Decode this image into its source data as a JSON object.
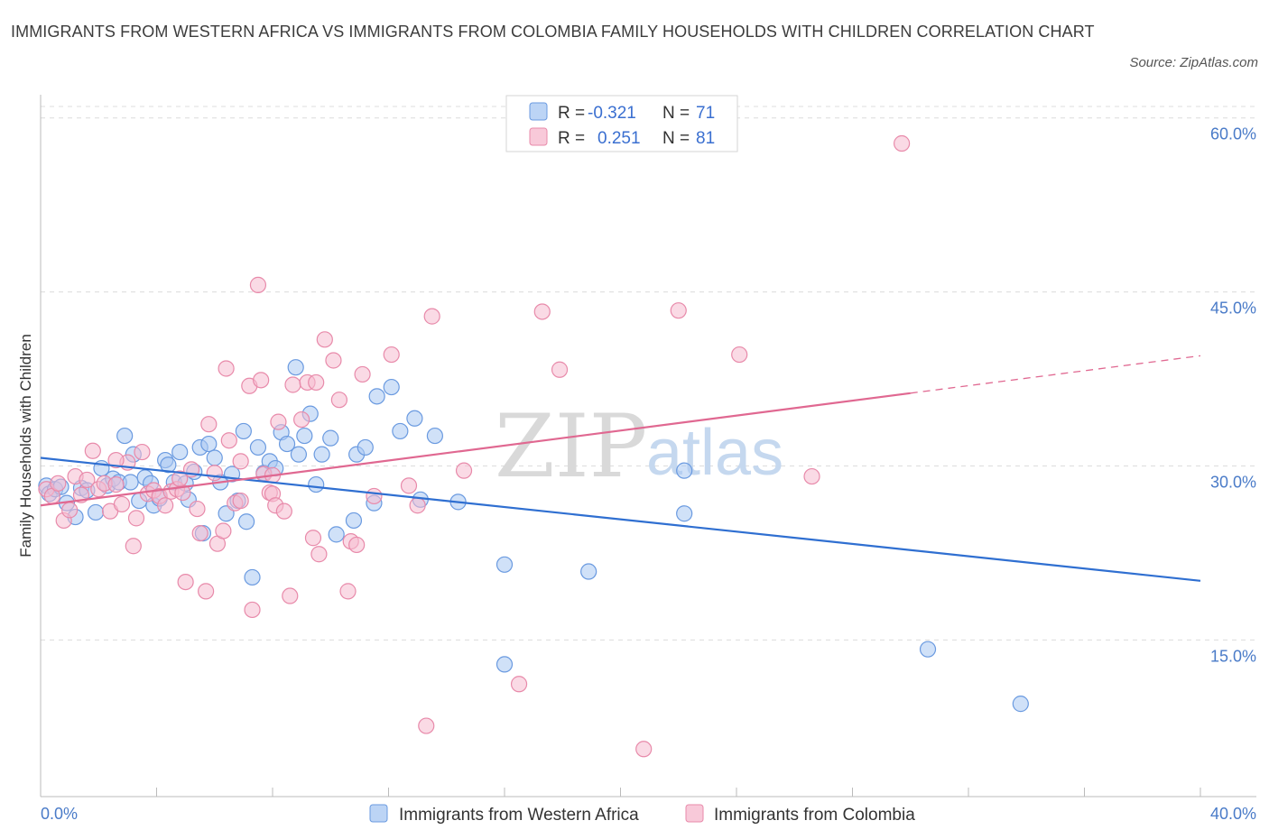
{
  "header": {
    "title": "IMMIGRANTS FROM WESTERN AFRICA VS IMMIGRANTS FROM COLOMBIA FAMILY HOUSEHOLDS WITH CHILDREN CORRELATION CHART",
    "source": "Source: ZipAtlas.com"
  },
  "watermark": {
    "zip": "ZIP",
    "atlas": "atlas"
  },
  "colors": {
    "blue_fill": "#a9c8f2",
    "blue_stroke": "#6a9ae0",
    "blue_line": "#2f6fd1",
    "pink_fill": "#f6bcd0",
    "pink_stroke": "#e88aaa",
    "pink_line": "#e06891",
    "grid": "#dcdcdc",
    "tick_text": "#4a7bc8"
  },
  "legend": {
    "rows": [
      {
        "r_label": "R =",
        "r_value": "-0.321",
        "n_label": "N =",
        "n_value": "71"
      },
      {
        "r_label": "R =",
        "r_value": "0.251",
        "n_label": "N =",
        "n_value": "81"
      }
    ]
  },
  "chart_data": {
    "type": "scatter",
    "title": "IMMIGRANTS FROM WESTERN AFRICA VS IMMIGRANTS FROM COLOMBIA FAMILY HOUSEHOLDS WITH CHILDREN CORRELATION CHART",
    "xlabel": "",
    "ylabel": "Family Households with Children",
    "xlim": [
      0,
      40
    ],
    "ylim": [
      1.5,
      62
    ],
    "x_ticks": [
      {
        "value": 0,
        "label": "0.0%"
      },
      {
        "value": 40,
        "label": "40.0%"
      }
    ],
    "y_ticks": [
      {
        "value": 15,
        "label": "15.0%"
      },
      {
        "value": 30,
        "label": "30.0%"
      },
      {
        "value": 45,
        "label": "45.0%"
      },
      {
        "value": 60,
        "label": "60.0%"
      }
    ],
    "grid": true,
    "legend_position": "top-center",
    "series": [
      {
        "name": "Immigrants from Western Africa",
        "color": "blue",
        "trend": {
          "x": [
            0,
            40
          ],
          "y": [
            30.7,
            20.1
          ],
          "dashed_from": null
        },
        "points": [
          [
            0.2,
            28.3
          ],
          [
            0.3,
            27.6
          ],
          [
            0.5,
            28.0
          ],
          [
            0.7,
            28.2
          ],
          [
            0.9,
            26.8
          ],
          [
            1.2,
            25.6
          ],
          [
            1.4,
            28.1
          ],
          [
            1.6,
            27.9
          ],
          [
            1.9,
            26.0
          ],
          [
            2.1,
            29.8
          ],
          [
            2.3,
            28.3
          ],
          [
            2.5,
            28.9
          ],
          [
            2.7,
            28.6
          ],
          [
            2.9,
            32.6
          ],
          [
            3.1,
            28.6
          ],
          [
            3.2,
            31.0
          ],
          [
            3.4,
            27.0
          ],
          [
            3.6,
            29.0
          ],
          [
            3.8,
            28.5
          ],
          [
            3.9,
            26.6
          ],
          [
            4.1,
            27.2
          ],
          [
            4.3,
            30.5
          ],
          [
            4.4,
            30.1
          ],
          [
            4.6,
            28.6
          ],
          [
            4.8,
            31.2
          ],
          [
            5.0,
            28.5
          ],
          [
            5.1,
            27.1
          ],
          [
            5.3,
            29.5
          ],
          [
            5.5,
            31.6
          ],
          [
            5.6,
            24.2
          ],
          [
            5.8,
            31.9
          ],
          [
            6.0,
            30.7
          ],
          [
            6.2,
            28.6
          ],
          [
            6.4,
            25.9
          ],
          [
            6.6,
            29.3
          ],
          [
            6.8,
            27.0
          ],
          [
            7.0,
            33.0
          ],
          [
            7.1,
            25.2
          ],
          [
            7.3,
            20.4
          ],
          [
            7.5,
            31.6
          ],
          [
            7.7,
            29.4
          ],
          [
            7.9,
            30.4
          ],
          [
            8.1,
            29.8
          ],
          [
            8.3,
            32.9
          ],
          [
            8.5,
            31.9
          ],
          [
            8.8,
            38.5
          ],
          [
            8.9,
            31.0
          ],
          [
            9.1,
            32.6
          ],
          [
            9.3,
            34.5
          ],
          [
            9.5,
            28.4
          ],
          [
            9.7,
            31.0
          ],
          [
            10.0,
            32.4
          ],
          [
            10.2,
            24.1
          ],
          [
            10.8,
            25.3
          ],
          [
            10.9,
            31.0
          ],
          [
            11.2,
            31.6
          ],
          [
            11.5,
            26.8
          ],
          [
            11.6,
            36.0
          ],
          [
            12.1,
            36.8
          ],
          [
            12.4,
            33.0
          ],
          [
            12.9,
            34.1
          ],
          [
            13.1,
            27.1
          ],
          [
            13.6,
            32.6
          ],
          [
            14.4,
            26.9
          ],
          [
            16.0,
            21.5
          ],
          [
            16.0,
            12.9
          ],
          [
            18.9,
            20.9
          ],
          [
            22.2,
            29.6
          ],
          [
            22.2,
            25.9
          ],
          [
            30.6,
            14.2
          ],
          [
            33.8,
            9.5
          ]
        ]
      },
      {
        "name": "Immigrants from Colombia",
        "color": "pink",
        "trend": {
          "x": [
            0,
            40
          ],
          "y": [
            26.6,
            39.5
          ],
          "dashed_from": 30
        },
        "points": [
          [
            0.2,
            28.0
          ],
          [
            0.4,
            27.4
          ],
          [
            0.6,
            28.5
          ],
          [
            0.8,
            25.3
          ],
          [
            1.0,
            26.2
          ],
          [
            1.2,
            29.1
          ],
          [
            1.4,
            27.5
          ],
          [
            1.6,
            28.8
          ],
          [
            1.8,
            31.3
          ],
          [
            2.0,
            28.0
          ],
          [
            2.2,
            28.5
          ],
          [
            2.4,
            26.1
          ],
          [
            2.6,
            28.4
          ],
          [
            2.8,
            26.7
          ],
          [
            3.0,
            30.3
          ],
          [
            3.2,
            23.1
          ],
          [
            3.3,
            25.5
          ],
          [
            3.5,
            31.2
          ],
          [
            3.7,
            27.6
          ],
          [
            3.9,
            27.9
          ],
          [
            4.1,
            27.4
          ],
          [
            4.3,
            26.6
          ],
          [
            4.5,
            27.8
          ],
          [
            4.7,
            28.0
          ],
          [
            4.9,
            27.7
          ],
          [
            5.0,
            20.0
          ],
          [
            5.2,
            29.7
          ],
          [
            5.4,
            26.3
          ],
          [
            5.5,
            24.2
          ],
          [
            5.7,
            19.2
          ],
          [
            5.8,
            33.6
          ],
          [
            6.0,
            29.4
          ],
          [
            6.1,
            23.3
          ],
          [
            6.3,
            24.4
          ],
          [
            6.4,
            38.4
          ],
          [
            6.5,
            32.2
          ],
          [
            6.7,
            26.8
          ],
          [
            6.9,
            27.0
          ],
          [
            7.2,
            36.9
          ],
          [
            7.3,
            17.6
          ],
          [
            7.5,
            45.6
          ],
          [
            7.6,
            37.4
          ],
          [
            7.7,
            29.3
          ],
          [
            7.9,
            27.7
          ],
          [
            8.0,
            27.6
          ],
          [
            8.1,
            26.6
          ],
          [
            8.2,
            33.8
          ],
          [
            8.4,
            26.1
          ],
          [
            8.6,
            18.8
          ],
          [
            8.7,
            37.0
          ],
          [
            9.0,
            34.0
          ],
          [
            9.2,
            37.2
          ],
          [
            9.4,
            23.8
          ],
          [
            9.5,
            37.2
          ],
          [
            9.6,
            22.4
          ],
          [
            9.8,
            40.9
          ],
          [
            10.1,
            39.1
          ],
          [
            10.3,
            35.7
          ],
          [
            10.6,
            19.2
          ],
          [
            10.7,
            23.5
          ],
          [
            10.9,
            23.2
          ],
          [
            11.1,
            37.9
          ],
          [
            11.5,
            27.4
          ],
          [
            12.1,
            39.6
          ],
          [
            12.7,
            28.3
          ],
          [
            13.0,
            26.6
          ],
          [
            13.3,
            7.6
          ],
          [
            13.5,
            42.9
          ],
          [
            14.6,
            29.6
          ],
          [
            16.5,
            11.2
          ],
          [
            17.3,
            43.3
          ],
          [
            17.9,
            38.3
          ],
          [
            20.8,
            5.6
          ],
          [
            22.0,
            43.4
          ],
          [
            24.1,
            39.6
          ],
          [
            26.6,
            29.1
          ],
          [
            29.7,
            57.8
          ],
          [
            2.6,
            30.5
          ],
          [
            6.9,
            30.4
          ],
          [
            8.0,
            29.2
          ],
          [
            4.8,
            28.9
          ]
        ]
      }
    ]
  },
  "bottom_legend": [
    {
      "label": "Immigrants from Western Africa"
    },
    {
      "label": "Immigrants from Colombia"
    }
  ]
}
